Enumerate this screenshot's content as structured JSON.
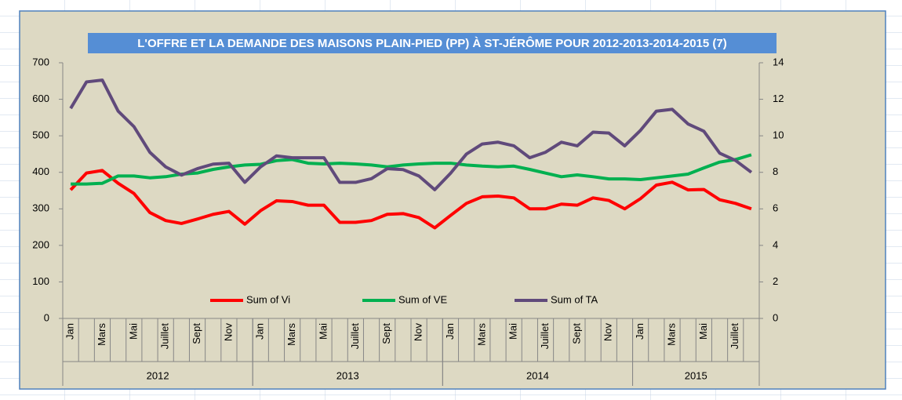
{
  "chart_data": {
    "type": "line",
    "title": "L'OFFRE ET LA DEMANDE DES MAISONS PLAIN-PIED (PP) À ST-JÉRÔME POUR 2012-2013-2014-2015 (7)",
    "categories": [
      "Jan",
      null,
      "Mars",
      null,
      "Mai",
      null,
      "Juillet",
      null,
      "Sept",
      null,
      "Nov",
      null,
      "Jan",
      null,
      "Mars",
      null,
      "Mai",
      null,
      "Juillet",
      null,
      "Sept",
      null,
      "Nov",
      null,
      "Jan",
      null,
      "Mars",
      null,
      "Mai",
      null,
      "Juillet",
      null,
      "Sept",
      null,
      "Nov",
      null,
      "Jan",
      null,
      "Mars",
      null,
      "Mai",
      null,
      "Juillet",
      null
    ],
    "groups": [
      {
        "label": "2012",
        "size": 12
      },
      {
        "label": "2013",
        "size": 12
      },
      {
        "label": "2014",
        "size": 12
      },
      {
        "label": "2015",
        "size": 8
      }
    ],
    "series": [
      {
        "name": "Sum of Vi",
        "color": "#ff0000",
        "axis": "y",
        "values": [
          352,
          398,
          405,
          370,
          342,
          290,
          268,
          260,
          272,
          285,
          293,
          258,
          295,
          322,
          320,
          310,
          310,
          263,
          263,
          268,
          285,
          287,
          276,
          248,
          282,
          315,
          333,
          335,
          330,
          300,
          300,
          313,
          310,
          330,
          323,
          300,
          328,
          365,
          373,
          352,
          353,
          325,
          315,
          300
        ]
      },
      {
        "name": "Sum of VE",
        "color": "#00b050",
        "axis": "y",
        "values": [
          368,
          368,
          370,
          390,
          390,
          385,
          388,
          395,
          398,
          408,
          415,
          420,
          422,
          432,
          435,
          425,
          423,
          425,
          423,
          420,
          415,
          420,
          423,
          425,
          425,
          420,
          417,
          415,
          417,
          408,
          398,
          388,
          393,
          388,
          382,
          382,
          380,
          385,
          390,
          395,
          412,
          428,
          435,
          448
        ]
      },
      {
        "name": "Sum of TA",
        "color": "#604a7b",
        "axis": "y2",
        "values": [
          11.5,
          12.95,
          13.05,
          11.35,
          10.5,
          9.1,
          8.3,
          7.85,
          8.2,
          8.45,
          8.5,
          7.45,
          8.3,
          8.9,
          8.8,
          8.8,
          8.8,
          7.45,
          7.45,
          7.65,
          8.2,
          8.15,
          7.8,
          7.05,
          7.95,
          9,
          9.55,
          9.65,
          9.45,
          8.8,
          9.1,
          9.65,
          9.45,
          10.2,
          10.15,
          9.45,
          10.3,
          11.35,
          11.45,
          10.65,
          10.25,
          9.05,
          8.65,
          8
        ]
      }
    ],
    "ylim": [
      0,
      700
    ],
    "yticks": [
      0,
      100,
      200,
      300,
      400,
      500,
      600,
      700
    ],
    "y2lim": [
      0,
      14
    ],
    "y2ticks": [
      0,
      2,
      4,
      6,
      8,
      10,
      12,
      14
    ],
    "grid": false,
    "legend": "bottom"
  }
}
